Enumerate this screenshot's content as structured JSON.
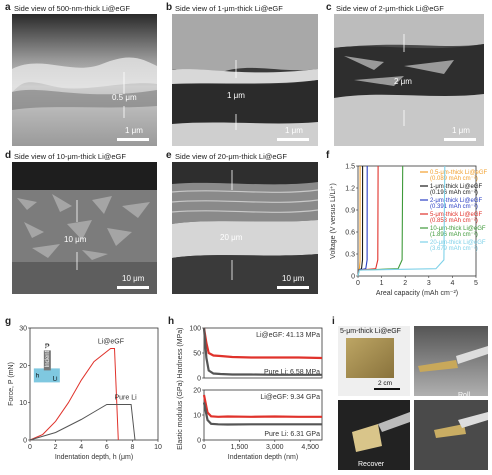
{
  "panels": {
    "a": {
      "letter": "a",
      "title": "Side view of 500-nm-thick Li@eGF",
      "thickness": "0.5 μm",
      "scale": "1 μm"
    },
    "b": {
      "letter": "b",
      "title": "Side view of 1-μm-thick Li@eGF",
      "thickness": "1 μm",
      "scale": "1 μm"
    },
    "c": {
      "letter": "c",
      "title": "Side view of 2-μm-thick Li@eGF",
      "thickness": "2 μm",
      "scale": "1 μm"
    },
    "d": {
      "letter": "d",
      "title": "Side view of 10-μm-thick Li@eGF",
      "thickness": "10 μm",
      "scale": "10 μm"
    },
    "e": {
      "letter": "e",
      "title": "Side view of 20-μm-thick Li@eGF",
      "thickness": "20 μm",
      "scale": "10 μm"
    },
    "f": {
      "letter": "f"
    },
    "g": {
      "letter": "g",
      "inset_p": "P",
      "inset_h": "h",
      "inset_tip": "Indenter",
      "inset_li": "Li"
    },
    "h": {
      "letter": "h"
    },
    "i": {
      "letter": "i",
      "photo_title": "5-μm-thick Li@eGF",
      "scale": "2 cm",
      "roll": "Roll",
      "recover": "Recover"
    }
  },
  "chart_data": [
    {
      "panel": "f",
      "type": "line",
      "xlabel": "Areal capacity (mAh cm⁻²)",
      "ylabel": "Voltage (V versus Li/Li⁺)",
      "xlim": [
        0,
        5
      ],
      "ylim": [
        0,
        1.5
      ],
      "xticks": [
        "0",
        "1",
        "2",
        "3",
        "4",
        "5"
      ],
      "yticks": [
        "0",
        "0.3",
        "0.6",
        "0.9",
        "1.2",
        "1.5"
      ],
      "series": [
        {
          "name": "0.5-μm-thick Li@eGF",
          "name2": "(0.089 mAh cm⁻²)",
          "color": "#f2a02e",
          "x": [
            0,
            0.02,
            0.06,
            0.085,
            0.089
          ],
          "y": [
            0,
            0.08,
            0.1,
            0.2,
            1.5
          ]
        },
        {
          "name": "1-μm-thick Li@eGF",
          "name2": "(0.196 mAh cm⁻²)",
          "color": "#1a1a1a",
          "x": [
            0,
            0.02,
            0.15,
            0.19,
            0.196
          ],
          "y": [
            0,
            0.08,
            0.1,
            0.22,
            1.5
          ]
        },
        {
          "name": "2-μm-thick Li@eGF",
          "name2": "(0.391 mAh cm⁻²)",
          "color": "#2b3fc4",
          "x": [
            0,
            0.03,
            0.33,
            0.385,
            0.391
          ],
          "y": [
            0,
            0.08,
            0.1,
            0.22,
            1.5
          ]
        },
        {
          "name": "5-μm-thick Li@eGF",
          "name2": "(0.853 mAh cm⁻²)",
          "color": "#e0322b",
          "x": [
            0,
            0.04,
            0.75,
            0.84,
            0.853
          ],
          "y": [
            0,
            0.08,
            0.1,
            0.22,
            1.5
          ]
        },
        {
          "name": "10-μm-thick Li@eGF",
          "name2": "(1.896 mAh cm⁻²)",
          "color": "#3f9a3a",
          "x": [
            0,
            0.05,
            1.7,
            1.87,
            1.896
          ],
          "y": [
            0,
            0.08,
            0.1,
            0.22,
            1.5
          ]
        },
        {
          "name": "20-μm-thick Li@eGF",
          "name2": "(3.679 mAh cm⁻²)",
          "color": "#7fd1e8",
          "x": [
            0,
            0.06,
            3.3,
            3.64,
            3.679
          ],
          "y": [
            0,
            0.08,
            0.1,
            0.22,
            1.5
          ]
        }
      ]
    },
    {
      "panel": "g",
      "type": "line",
      "xlabel": "Indentation depth, h (μm)",
      "ylabel": "Force, P (mN)",
      "xlim": [
        0,
        10
      ],
      "ylim": [
        0,
        30
      ],
      "xticks": [
        "0",
        "2",
        "4",
        "6",
        "8",
        "10"
      ],
      "yticks": [
        "0",
        "10",
        "20",
        "30"
      ],
      "series": [
        {
          "name": "Li@eGF",
          "color": "#e0322b",
          "x": [
            0,
            1,
            2,
            3,
            4,
            5,
            6.3,
            6.6,
            6.9
          ],
          "y": [
            0,
            1.5,
            5,
            10,
            16,
            21,
            24.5,
            24.5,
            0
          ]
        },
        {
          "name": "Pure Li",
          "color": "#555555",
          "x": [
            0,
            2,
            4,
            5,
            6,
            7.5,
            7.9,
            8.2
          ],
          "y": [
            0,
            2,
            5.5,
            7.5,
            9.5,
            9.5,
            9.5,
            0
          ]
        }
      ]
    },
    {
      "panel": "h",
      "type": "line",
      "xlabel": "Indentation depth (nm)",
      "xlim": [
        0,
        5000
      ],
      "xticks": [
        "0",
        "1,500",
        "3,000",
        "4,500"
      ],
      "subplots": [
        {
          "ylabel": "Hardness (MPa)",
          "ylim": [
            0,
            100
          ],
          "yticks": [
            "0",
            "50",
            "100"
          ],
          "series": [
            {
              "name": "Li@eGF: 41.13 MPa",
              "color": "#e0322b",
              "x": [
                0,
                100,
                200,
                400,
                700,
                1200,
                2000,
                3000,
                4000,
                5000
              ],
              "y": [
                100,
                70,
                50,
                45,
                44,
                42,
                41,
                41,
                41,
                40
              ]
            },
            {
              "name": "Pure Li: 6.58 MPa",
              "color": "#555555",
              "x": [
                0,
                100,
                200,
                400,
                700,
                1200,
                2000,
                3000,
                4000,
                5000
              ],
              "y": [
                100,
                40,
                15,
                9,
                8,
                7,
                7,
                6.5,
                6.5,
                6.5
              ]
            }
          ]
        },
        {
          "ylabel": "Elastic modulus (GPa)",
          "ylim": [
            0,
            20
          ],
          "yticks": [
            "0",
            "10",
            "20"
          ],
          "series": [
            {
              "name": "Li@eGF: 9.34 GPa",
              "color": "#e0322b",
              "x": [
                0,
                150,
                300,
                600,
                1000,
                2000,
                3000,
                4000,
                5000
              ],
              "y": [
                18,
                11,
                9.5,
                9.3,
                9.4,
                9.3,
                9.4,
                9.3,
                9.3
              ]
            },
            {
              "name": "Pure Li: 6.31 GPa",
              "color": "#555555",
              "x": [
                0,
                150,
                300,
                600,
                1000,
                2000,
                3000,
                4000,
                5000
              ],
              "y": [
                15,
                8,
                6.5,
                6.3,
                6.2,
                6.3,
                6.3,
                6.3,
                6.3
              ]
            }
          ]
        }
      ]
    }
  ]
}
